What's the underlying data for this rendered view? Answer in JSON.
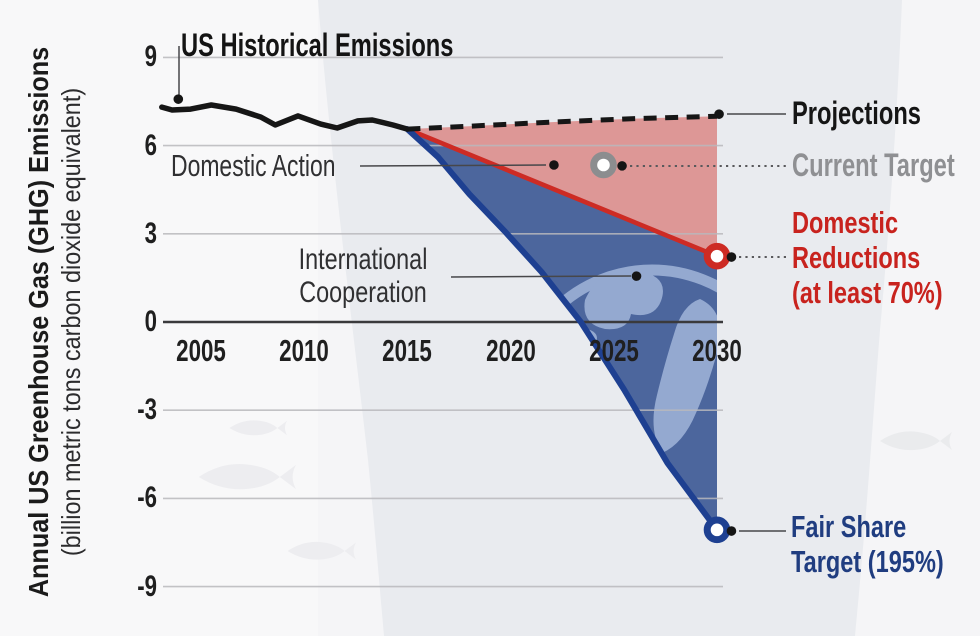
{
  "figure": {
    "y_axis_title_bold": "Annual US Greenhouse Gas (GHG) Emissions",
    "y_axis_title_sub": "(billion metric tons carbon dioxide equivalent)"
  },
  "labels": {
    "historical": "US Historical Emissions",
    "domestic_action": "Domestic Action",
    "international_cooperation": [
      "International",
      "Cooperation"
    ],
    "projections": "Projections",
    "current_target": "Current Target",
    "domestic_reductions": [
      "Domestic",
      "Reductions",
      "(at least 70%)"
    ],
    "fair_share": [
      "Fair Share",
      "Target (195%)"
    ]
  },
  "colors": {
    "line_black": "#161616",
    "red_line": "#cd2b24",
    "red_fill": "rgba(205,43,36,0.44)",
    "blue_line": "#1e4091",
    "blue_fill": "rgba(23,58,130,0.75)",
    "globe": "#9db1d6",
    "gray_ring": "#8c8d8f",
    "grid": "#b9b9bd",
    "zero_line": "#3a3a3c",
    "red_text": "#c8231e",
    "blue_text": "#203d80",
    "gray_text": "#8f9093"
  },
  "chart_data": {
    "type": "line",
    "title": "US Historical Emissions",
    "ylabel": "Annual US Greenhouse Gas (GHG) Emissions (billion metric tons carbon dioxide equivalent)",
    "xlim": [
      2003,
      2031
    ],
    "ylim": [
      -9,
      9
    ],
    "xticks": [
      2005,
      2010,
      2015,
      2020,
      2025,
      2030
    ],
    "yticks": [
      9,
      6,
      3,
      0,
      -3,
      -6,
      -9
    ],
    "grid": "horizontal only",
    "legend_position": "annotated labels, right side",
    "series": [
      {
        "name": "US Historical Emissions",
        "style": "solid",
        "role": "historical",
        "points": [
          [
            2003.1,
            7.31
          ],
          [
            2003.6,
            7.21
          ],
          [
            2004.5,
            7.24
          ],
          [
            2005.5,
            7.38
          ],
          [
            2006.7,
            7.24
          ],
          [
            2007.9,
            6.97
          ],
          [
            2008.6,
            6.7
          ],
          [
            2009.7,
            7.01
          ],
          [
            2010.8,
            6.73
          ],
          [
            2011.6,
            6.6
          ],
          [
            2012.6,
            6.84
          ],
          [
            2013.3,
            6.87
          ],
          [
            2014.3,
            6.7
          ],
          [
            2015.0,
            6.56
          ]
        ]
      },
      {
        "name": "Projections",
        "style": "dashed",
        "role": "projection",
        "points": [
          [
            2015.0,
            6.56
          ],
          [
            2018,
            6.66
          ],
          [
            2022,
            6.8
          ],
          [
            2026,
            6.92
          ],
          [
            2030,
            7.0
          ]
        ]
      },
      {
        "name": "Domestic Reductions (at least 70%)",
        "style": "solid",
        "role": "red-target",
        "points": [
          [
            2015.0,
            6.56
          ],
          [
            2030,
            2.24
          ]
        ]
      },
      {
        "name": "Fair Share Target (195%)",
        "style": "solid",
        "role": "blue-target",
        "points": [
          [
            2015.0,
            6.56
          ],
          [
            2016.5,
            5.6
          ],
          [
            2018,
            4.35
          ],
          [
            2019.7,
            3.1
          ],
          [
            2021.5,
            1.7
          ],
          [
            2023.4,
            0.0
          ],
          [
            2025.5,
            -2.3
          ],
          [
            2027.6,
            -4.8
          ],
          [
            2030,
            -7.07
          ]
        ]
      }
    ],
    "areas": [
      {
        "name": "Domestic Action",
        "between": [
          "Projections",
          "Domestic Reductions (at least 70%)"
        ]
      },
      {
        "name": "International Cooperation",
        "between": [
          "Domestic Reductions (at least 70%)",
          "Fair Share Target (195%)"
        ]
      }
    ],
    "markers": [
      {
        "name": "historical-start-dot",
        "kind": "dot",
        "x": 2003.9,
        "y": 7.58
      },
      {
        "name": "projection-end-dot",
        "kind": "dot",
        "x": 2030.1,
        "y": 7.07
      },
      {
        "name": "domestic-action-dot",
        "kind": "dot",
        "x": 2022.1,
        "y": 5.34
      },
      {
        "name": "current-target-marker",
        "kind": "ring",
        "x": 2024.5,
        "y": 5.34,
        "color": "#8c8d8f"
      },
      {
        "name": "current-target-dot",
        "kind": "dot",
        "x": 2025.4,
        "y": 5.31
      },
      {
        "name": "intl-cooperation-dot",
        "kind": "dot",
        "x": 2026.1,
        "y": 1.56
      },
      {
        "name": "domestic-reductions-marker",
        "kind": "ring",
        "x": 2030,
        "y": 2.24,
        "color": "#cd2b24"
      },
      {
        "name": "domestic-reductions-dot",
        "kind": "dot",
        "x": 2030.7,
        "y": 2.21
      },
      {
        "name": "fair-share-marker",
        "kind": "ring",
        "x": 2030,
        "y": -7.07,
        "color": "#1e4091"
      },
      {
        "name": "fair-share-dot",
        "kind": "dot",
        "x": 2030.7,
        "y": -7.11
      }
    ]
  }
}
